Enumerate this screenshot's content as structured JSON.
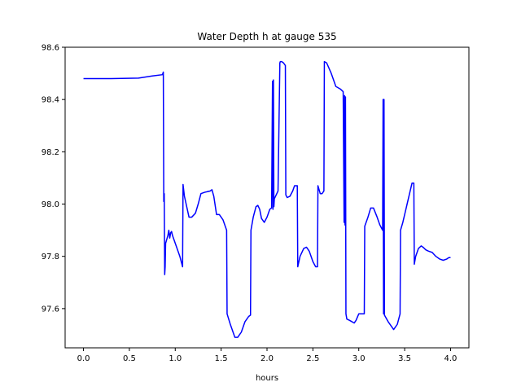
{
  "chart_data": {
    "type": "line",
    "title": "Water Depth h at gauge 535",
    "xlabel": "hours",
    "ylabel": "",
    "xlim": [
      -0.2,
      4.2
    ],
    "ylim": [
      97.45,
      98.6
    ],
    "xticks": [
      0.0,
      0.5,
      1.0,
      1.5,
      2.0,
      2.5,
      3.0,
      3.5,
      4.0
    ],
    "xtick_labels": [
      "0.0",
      "0.5",
      "1.0",
      "1.5",
      "2.0",
      "2.5",
      "3.0",
      "3.5",
      "4.0"
    ],
    "yticks": [
      97.6,
      97.8,
      98.0,
      98.2,
      98.4,
      98.6
    ],
    "ytick_labels": [
      "97.6",
      "97.8",
      "98.0",
      "98.2",
      "98.4",
      "98.6"
    ],
    "grid": false,
    "series": [
      {
        "color": "#0000ff",
        "x": [
          0.0,
          0.3,
          0.6,
          0.75,
          0.86,
          0.87,
          0.875,
          0.88,
          0.885,
          0.89,
          0.895,
          0.92,
          0.93,
          0.94,
          0.95,
          0.96,
          0.97,
          0.98,
          1.0,
          1.05,
          1.08,
          1.085,
          1.1,
          1.15,
          1.18,
          1.22,
          1.25,
          1.28,
          1.32,
          1.38,
          1.4,
          1.42,
          1.45,
          1.48,
          1.52,
          1.56,
          1.565,
          1.6,
          1.63,
          1.65,
          1.68,
          1.72,
          1.76,
          1.8,
          1.82,
          1.825,
          1.85,
          1.88,
          1.9,
          1.92,
          1.94,
          1.97,
          2.0,
          2.03,
          2.05,
          2.06,
          2.065,
          2.07,
          2.075,
          2.08,
          2.12,
          2.14,
          2.145,
          2.16,
          2.18,
          2.2,
          2.205,
          2.22,
          2.25,
          2.28,
          2.3,
          2.33,
          2.335,
          2.36,
          2.4,
          2.43,
          2.46,
          2.5,
          2.53,
          2.55,
          2.555,
          2.58,
          2.6,
          2.62,
          2.625,
          2.65,
          2.7,
          2.75,
          2.8,
          2.83,
          2.84,
          2.845,
          2.85,
          2.855,
          2.86,
          2.865,
          2.87,
          2.9,
          2.95,
          2.97,
          3.0,
          3.03,
          3.06,
          3.065,
          3.1,
          3.13,
          3.16,
          3.2,
          3.23,
          3.26,
          3.265,
          3.27,
          3.275,
          3.28,
          3.32,
          3.36,
          3.38,
          3.42,
          3.45,
          3.455,
          3.48,
          3.52,
          3.58,
          3.6,
          3.605,
          3.62,
          3.65,
          3.68,
          3.7,
          3.73,
          3.76,
          3.8,
          3.84,
          3.88,
          3.92,
          3.96,
          3.98,
          4.0
        ],
        "y": [
          98.48,
          98.48,
          98.482,
          98.49,
          98.495,
          98.505,
          98.01,
          98.04,
          97.73,
          97.76,
          97.85,
          97.88,
          97.9,
          97.87,
          97.89,
          97.895,
          97.88,
          97.87,
          97.85,
          97.8,
          97.76,
          98.075,
          98.03,
          97.95,
          97.95,
          97.965,
          98.0,
          98.04,
          98.045,
          98.05,
          98.055,
          98.03,
          97.96,
          97.96,
          97.94,
          97.9,
          97.58,
          97.54,
          97.51,
          97.49,
          97.49,
          97.51,
          97.55,
          97.57,
          97.575,
          97.9,
          97.95,
          97.99,
          97.995,
          97.98,
          97.945,
          97.93,
          97.95,
          97.98,
          97.985,
          98.47,
          97.98,
          98.475,
          97.99,
          98.02,
          98.05,
          98.54,
          98.545,
          98.545,
          98.54,
          98.53,
          98.035,
          98.025,
          98.03,
          98.05,
          98.07,
          98.07,
          97.76,
          97.8,
          97.83,
          97.835,
          97.82,
          97.78,
          97.76,
          97.76,
          98.07,
          98.04,
          98.04,
          98.05,
          98.545,
          98.54,
          98.5,
          98.45,
          98.44,
          98.43,
          97.93,
          98.415,
          97.92,
          98.41,
          97.58,
          97.57,
          97.56,
          97.555,
          97.545,
          97.555,
          97.58,
          97.58,
          97.58,
          97.915,
          97.95,
          97.985,
          97.985,
          97.95,
          97.92,
          97.9,
          98.4,
          97.58,
          98.4,
          97.575,
          97.55,
          97.53,
          97.52,
          97.54,
          97.58,
          97.9,
          97.93,
          97.99,
          98.08,
          98.08,
          97.77,
          97.8,
          97.83,
          97.84,
          97.835,
          97.825,
          97.82,
          97.815,
          97.8,
          97.79,
          97.785,
          97.79,
          97.795,
          97.795
        ]
      }
    ]
  }
}
